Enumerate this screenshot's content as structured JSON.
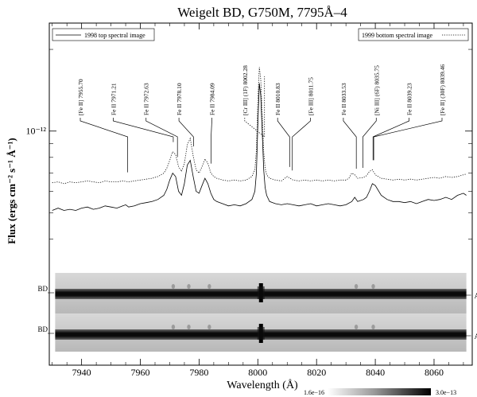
{
  "chart_data": {
    "type": "line",
    "title": "Weigelt BD, G750M, 7795Å–4",
    "xlabel": "Wavelength (Å)",
    "ylabel": "Flux (ergs cm⁻² s⁻¹ Å⁻¹)",
    "xlim": [
      7929,
      8073
    ],
    "ylim": [
      3.3e-13,
      2.5e-12
    ],
    "y_scale": "log",
    "x_ticks": [
      7940,
      7960,
      7980,
      8000,
      8020,
      8040,
      8060
    ],
    "y_tick_label": "10⁻¹²",
    "y_tick_value": 1e-12,
    "grid": false,
    "legend": [
      {
        "name": "1998 top spectral image",
        "style": "solid",
        "position": "top-left"
      },
      {
        "name": "1999 bottom spectral image",
        "style": "dotted",
        "position": "top-right"
      }
    ],
    "series": [
      {
        "name": "1998 top spectral image",
        "style": "solid",
        "x": [
          7930,
          7932,
          7934,
          7936,
          7938,
          7940,
          7942,
          7944,
          7946,
          7948,
          7950,
          7952,
          7954,
          7955,
          7956,
          7958,
          7960,
          7962,
          7964,
          7966,
          7968,
          7969,
          7970,
          7971,
          7972,
          7973,
          7974,
          7975,
          7976,
          7977,
          7978,
          7979,
          7980,
          7981,
          7982,
          7983,
          7984,
          7985,
          7986,
          7988,
          7990,
          7992,
          7994,
          7996,
          7998,
          7999,
          7999.5,
          8000,
          8000.5,
          8001,
          8001.5,
          8002,
          8002.5,
          8003,
          8004,
          8006,
          8008,
          8010,
          8012,
          8014,
          8016,
          8018,
          8020,
          8022,
          8024,
          8026,
          8028,
          8030,
          8032,
          8033,
          8034,
          8036,
          8037,
          8038,
          8039,
          8040,
          8042,
          8044,
          8046,
          8048,
          8050,
          8052,
          8054,
          8056,
          8058,
          8060,
          8062,
          8064,
          8066,
          8068,
          8070,
          8071
        ],
        "y": [
          5.1e-13,
          5.2e-13,
          5.1e-13,
          5.15e-13,
          5.1e-13,
          5.2e-13,
          5.25e-13,
          5.15e-13,
          5.2e-13,
          5.3e-13,
          5.25e-13,
          5.2e-13,
          5.3e-13,
          5.35e-13,
          5.25e-13,
          5.3e-13,
          5.4e-13,
          5.45e-13,
          5.5e-13,
          5.6e-13,
          5.8e-13,
          6.1e-13,
          6.6e-13,
          7e-13,
          6.8e-13,
          6e-13,
          5.8e-13,
          6.4e-13,
          7.5e-13,
          7.8e-13,
          6.8e-13,
          6e-13,
          5.9e-13,
          6.3e-13,
          6.7e-13,
          6.4e-13,
          5.9e-13,
          5.6e-13,
          5.5e-13,
          5.4e-13,
          5.3e-13,
          5.35e-13,
          5.3e-13,
          5.4e-13,
          5.6e-13,
          6e-13,
          7e-13,
          1.05e-12,
          1.5e-12,
          1.35e-12,
          1e-12,
          7.2e-13,
          6.2e-13,
          5.8e-13,
          5.5e-13,
          5.4e-13,
          5.35e-13,
          5.4e-13,
          5.35e-13,
          5.3e-13,
          5.35e-13,
          5.4e-13,
          5.3e-13,
          5.35e-13,
          5.4e-13,
          5.35e-13,
          5.3e-13,
          5.35e-13,
          5.5e-13,
          5.7e-13,
          5.5e-13,
          5.6e-13,
          5.7e-13,
          6e-13,
          6.4e-13,
          6.3e-13,
          5.8e-13,
          5.6e-13,
          5.5e-13,
          5.5e-13,
          5.45e-13,
          5.5e-13,
          5.4e-13,
          5.5e-13,
          5.6e-13,
          5.55e-13,
          5.6e-13,
          5.7e-13,
          5.6e-13,
          5.8e-13,
          5.9e-13,
          5.8e-13
        ]
      },
      {
        "name": "1999 bottom spectral image",
        "style": "dotted",
        "x": [
          7930,
          7932,
          7934,
          7936,
          7938,
          7940,
          7942,
          7944,
          7946,
          7948,
          7950,
          7952,
          7954,
          7956,
          7958,
          7960,
          7962,
          7964,
          7966,
          7968,
          7969,
          7970,
          7971,
          7972,
          7973,
          7974,
          7975,
          7976,
          7977,
          7978,
          7979,
          7980,
          7981,
          7982,
          7983,
          7984,
          7985,
          7986,
          7988,
          7990,
          7992,
          7994,
          7996,
          7998,
          7999,
          7999.5,
          8000,
          8000.5,
          8001,
          8001.5,
          8002,
          8002.5,
          8003,
          8004,
          8006,
          8008,
          8010,
          8012,
          8014,
          8016,
          8018,
          8020,
          8022,
          8024,
          8026,
          8028,
          8030,
          8031,
          8032,
          8033,
          8034,
          8036,
          8037,
          8038,
          8039,
          8040,
          8042,
          8044,
          8046,
          8048,
          8050,
          8052,
          8054,
          8056,
          8058,
          8060,
          8062,
          8064,
          8066,
          8068,
          8070,
          8071
        ],
        "y": [
          6.45e-13,
          6.5e-13,
          6.4e-13,
          6.5e-13,
          6.45e-13,
          6.5e-13,
          6.55e-13,
          6.5e-13,
          6.45e-13,
          6.55e-13,
          6.5e-13,
          6.5e-13,
          6.55e-13,
          6.5e-13,
          6.55e-13,
          6.6e-13,
          6.65e-13,
          6.7e-13,
          6.8e-13,
          7e-13,
          7.3e-13,
          7.8e-13,
          8.4e-13,
          8.2e-13,
          7.4e-13,
          7.1e-13,
          7.6e-13,
          8.9e-13,
          9.4e-13,
          8.1e-13,
          7.2e-13,
          7e-13,
          7.4e-13,
          7.9e-13,
          7.6e-13,
          7e-13,
          6.8e-13,
          6.7e-13,
          6.6e-13,
          6.55e-13,
          6.6e-13,
          6.55e-13,
          6.6e-13,
          6.8e-13,
          7.2e-13,
          8.5e-13,
          1.3e-12,
          1.72e-12,
          1.55e-12,
          1.15e-12,
          8.4e-13,
          7.3e-13,
          6.9e-13,
          6.7e-13,
          6.6e-13,
          6.55e-13,
          6.8e-13,
          6.6e-13,
          6.55e-13,
          6.6e-13,
          6.55e-13,
          6.6e-13,
          6.55e-13,
          6.6e-13,
          6.55e-13,
          6.6e-13,
          6.6e-13,
          6.7e-13,
          7e-13,
          6.9e-13,
          6.7e-13,
          6.75e-13,
          6.85e-13,
          7.1e-13,
          7.2e-13,
          6.9e-13,
          6.7e-13,
          6.65e-13,
          6.6e-13,
          6.65e-13,
          6.6e-13,
          6.65e-13,
          6.6e-13,
          6.65e-13,
          6.7e-13,
          6.75e-13,
          6.7e-13,
          6.8e-13,
          6.75e-13,
          6.8e-13,
          6.9e-13,
          6.95e-13
        ]
      }
    ],
    "line_ids": [
      {
        "label": "[Fe II] 7955.70",
        "wavelength": 7955.7
      },
      {
        "label": "Fe II 7971.21",
        "wavelength": 7971.21
      },
      {
        "label": "Fe II 7972.63",
        "wavelength": 7972.63
      },
      {
        "label": "Fe II 7978.10",
        "wavelength": 7978.1
      },
      {
        "label": "Fe II 7984.09",
        "wavelength": 7984.09
      },
      {
        "label": "[Cr III] (1F) 8002.28",
        "wavelength": 8002.28
      },
      {
        "label": "Fe II 8010.83",
        "wavelength": 8010.83
      },
      {
        "label": "[Fe III] 8011.75",
        "wavelength": 8011.75
      },
      {
        "label": "Fe II 8033.53",
        "wavelength": 8033.53
      },
      {
        "label": "[Ni III] (6F) 8035.75",
        "wavelength": 8035.75
      },
      {
        "label": "Fe II 8039.23",
        "wavelength": 8039.23
      },
      {
        "label": "[Fe II] (30F) 8039.46",
        "wavelength": 8039.46
      }
    ],
    "spectral_images": [
      {
        "name": "top",
        "left_label": "BD",
        "right_label": "A"
      },
      {
        "name": "bottom",
        "left_label": "BD",
        "right_label": "A"
      }
    ],
    "colorbar": {
      "min_label": "1.6e−16",
      "max_label": "3.0e−13"
    }
  }
}
